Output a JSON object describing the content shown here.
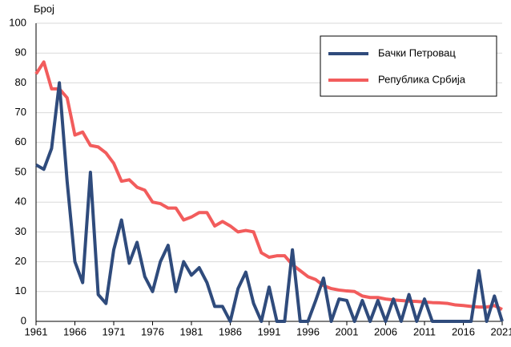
{
  "chart_data": {
    "type": "line",
    "y_label": "Број",
    "x": [
      1961,
      1962,
      1963,
      1964,
      1965,
      1966,
      1967,
      1968,
      1969,
      1970,
      1971,
      1972,
      1973,
      1974,
      1975,
      1976,
      1977,
      1978,
      1979,
      1980,
      1981,
      1982,
      1983,
      1984,
      1985,
      1986,
      1987,
      1988,
      1989,
      1990,
      1991,
      1992,
      1993,
      1994,
      1995,
      1996,
      1997,
      1998,
      1999,
      2000,
      2001,
      2002,
      2003,
      2004,
      2005,
      2006,
      2007,
      2008,
      2009,
      2010,
      2011,
      2012,
      2013,
      2014,
      2015,
      2016,
      2017,
      2018,
      2019,
      2020,
      2021
    ],
    "series": [
      {
        "name": "Бачки Петровац",
        "color": "#2f4b7c",
        "values": [
          52.5,
          51,
          58,
          80,
          47,
          20,
          13,
          50,
          9,
          6,
          24,
          34,
          19.5,
          26.5,
          15,
          10,
          20,
          25.5,
          10,
          20,
          15.5,
          18,
          13,
          5,
          5,
          0,
          11,
          16.5,
          6,
          0,
          11.5,
          0,
          0,
          24,
          0,
          0,
          7,
          14.5,
          0,
          7.5,
          7,
          0,
          7,
          0,
          7,
          0,
          7.5,
          0,
          9,
          0,
          7.5,
          0,
          0,
          0,
          0,
          0,
          0,
          17,
          0,
          8.5,
          0
        ]
      },
      {
        "name": "Република Србија",
        "color": "#f25c5c",
        "values": [
          83,
          87,
          78,
          78,
          75,
          62.5,
          63.5,
          59,
          58.5,
          56.5,
          53,
          47,
          47.5,
          45,
          44,
          40,
          39.5,
          38,
          38,
          34,
          35,
          36.5,
          36.5,
          32,
          33.5,
          32,
          30,
          30.5,
          30,
          23,
          21.5,
          22,
          22,
          19,
          17,
          15,
          14,
          12,
          11,
          10.5,
          10.2,
          10,
          8.5,
          8,
          8,
          7.5,
          7.2,
          7,
          6.8,
          6.7,
          6.5,
          6.3,
          6.2,
          6,
          5.5,
          5.3,
          5,
          4.8,
          4.8,
          5.3,
          4
        ]
      }
    ],
    "xlim": [
      1961,
      2021
    ],
    "xticks": [
      1961,
      1966,
      1971,
      1976,
      1981,
      1986,
      1991,
      1996,
      2001,
      2006,
      2011,
      2016,
      2021
    ],
    "ylim": [
      0,
      100
    ],
    "yticks": [
      0,
      10,
      20,
      30,
      40,
      50,
      60,
      70,
      80,
      90,
      100
    ],
    "grid": true,
    "legend": "top-right"
  }
}
